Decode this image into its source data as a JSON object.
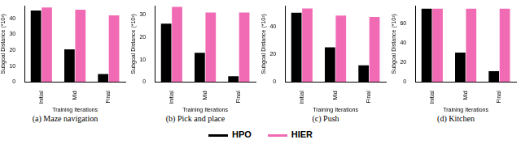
{
  "chart_data": [
    {
      "type": "bar",
      "title": "(a) Maze navigation",
      "x_label": "Training Iterations",
      "y_label": "Subgoal Distance (*10²)",
      "categories": [
        "Initial",
        "Mid",
        "Final"
      ],
      "series": [
        {
          "name": "HPO",
          "color": "#000000",
          "values": [
            45,
            20.5,
            5
          ]
        },
        {
          "name": "HIER",
          "color": "#f06bb3",
          "values": [
            47,
            45.5,
            42
          ]
        }
      ],
      "ylim": [
        0,
        48
      ],
      "yticks": [
        0,
        10,
        20,
        30,
        40
      ],
      "grid": false,
      "legend": "bottom"
    },
    {
      "type": "bar",
      "title": "(b) Pick and place",
      "x_label": "Training Iterations",
      "y_label": "Subgoal Distance (*10²)",
      "categories": [
        "Initial",
        "Mid",
        "Final"
      ],
      "series": [
        {
          "name": "HPO",
          "color": "#000000",
          "values": [
            26,
            13,
            2.5
          ]
        },
        {
          "name": "HIER",
          "color": "#f06bb3",
          "values": [
            33.5,
            31,
            31
          ]
        }
      ],
      "ylim": [
        0,
        34
      ],
      "yticks": [
        0,
        10,
        20,
        30
      ],
      "grid": false,
      "legend": "bottom"
    },
    {
      "type": "bar",
      "title": "(c) Push",
      "x_label": "Training Iterations",
      "y_label": "Subgoal Distance (*10²)",
      "categories": [
        "Initial",
        "Mid",
        "Final"
      ],
      "series": [
        {
          "name": "HPO",
          "color": "#000000",
          "values": [
            50,
            25,
            12
          ]
        },
        {
          "name": "HIER",
          "color": "#f06bb3",
          "values": [
            53,
            48,
            47
          ]
        }
      ],
      "ylim": [
        0,
        55
      ],
      "yticks": [
        0,
        20,
        40
      ],
      "grid": false,
      "legend": "bottom"
    },
    {
      "type": "bar",
      "title": "(d) Kitchen",
      "x_label": "Training Iterations",
      "y_label": "Subgoal Distance (*10²)",
      "categories": [
        "Initial",
        "Mid",
        "Final"
      ],
      "series": [
        {
          "name": "HPO",
          "color": "#000000",
          "values": [
            75,
            30,
            11
          ]
        },
        {
          "name": "HIER",
          "color": "#f06bb3",
          "values": [
            75,
            75,
            75
          ]
        }
      ],
      "ylim": [
        0,
        78
      ],
      "yticks": [
        0,
        20,
        40,
        60
      ],
      "grid": false,
      "legend": "bottom"
    }
  ]
}
